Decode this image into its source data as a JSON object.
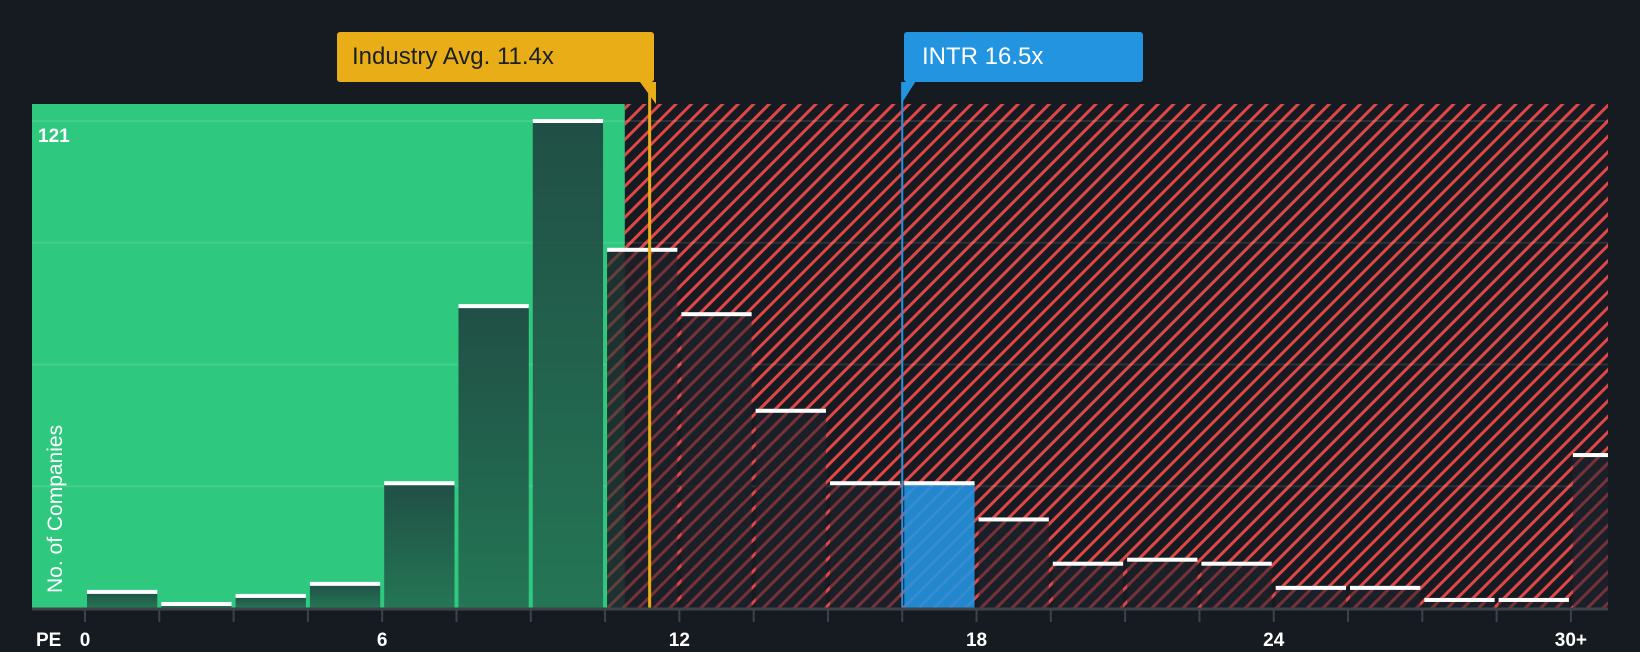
{
  "chart_data": {
    "type": "bar",
    "title": "",
    "xlabel": "PE",
    "ylabel": "No. of Companies",
    "ylim": [
      0,
      121
    ],
    "y_max_label": "121",
    "grid": true,
    "x_tick_labels": [
      "0",
      "6",
      "12",
      "18",
      "24",
      "30+"
    ],
    "bin_width": 1.5,
    "categories": [
      "0-1.5",
      "1.5-3",
      "3-4.5",
      "4.5-6",
      "6-7.5",
      "7.5-9",
      "9-10.5",
      "10.5-12",
      "12-13.5",
      "13.5-15",
      "15-16.5",
      "16.5-18",
      "18-19.5",
      "19.5-21",
      "21-22.5",
      "22.5-24",
      "24-25.5",
      "25.5-27",
      "27-28.5",
      "28.5-30",
      "30+"
    ],
    "values": [
      4,
      1,
      3,
      6,
      31,
      75,
      121,
      89,
      73,
      49,
      31,
      31,
      22,
      11,
      12,
      11,
      5,
      5,
      2,
      2,
      38
    ],
    "highlight_bin_index": 11,
    "fair_zone_max_pe": 10.9,
    "annotations": [
      {
        "label": "Industry Avg. 11.4x",
        "value": 11.4,
        "color": "#e9ae17"
      },
      {
        "label": "INTR 16.5x",
        "value": 16.5,
        "color": "#2394e0"
      }
    ]
  },
  "callouts": {
    "industry": "Industry Avg. 11.4x",
    "company": "INTR 16.5x"
  },
  "axis": {
    "y_title": "No. of Companies",
    "y_max": "121",
    "x_title": "PE",
    "x_ticks": [
      {
        "label": "0",
        "value": 0
      },
      {
        "label": "6",
        "value": 6
      },
      {
        "label": "12",
        "value": 12
      },
      {
        "label": "18",
        "value": 18
      },
      {
        "label": "24",
        "value": 24
      },
      {
        "label": "30+",
        "value": 30
      }
    ]
  },
  "colors": {
    "background": "#161b22",
    "fair_zone": "#2ec97f",
    "bar_fill_green": "#1f4a40",
    "bar_fill_red": "#1c2029",
    "stripe": "#e04646",
    "highlight": "#2394e0",
    "industry": "#e9ae17",
    "bar_cap": "#ffffff",
    "axis": "#3d434c"
  }
}
